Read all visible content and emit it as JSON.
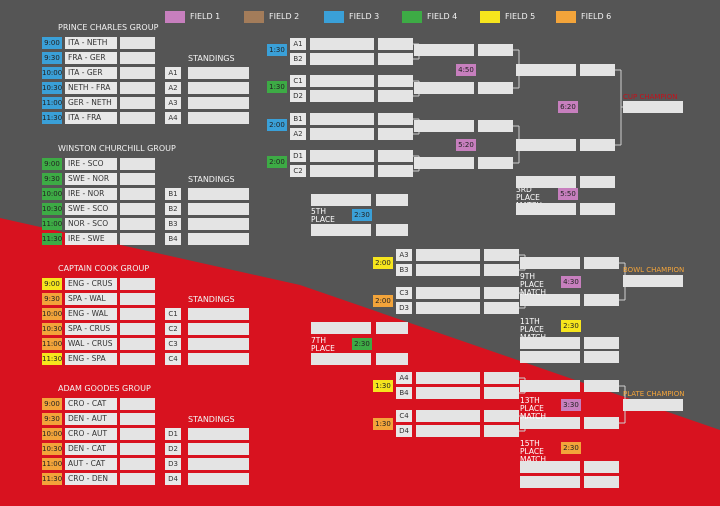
{
  "legend": [
    {
      "label": "FIELD 1",
      "color": "#c77fbe"
    },
    {
      "label": "FIELD 2",
      "color": "#a37c5a"
    },
    {
      "label": "FIELD 3",
      "color": "#3aa0d8"
    },
    {
      "label": "FIELD 4",
      "color": "#3dab45"
    },
    {
      "label": "FIELD 5",
      "color": "#f6e51d"
    },
    {
      "label": "FIELD 6",
      "color": "#f3a43a"
    }
  ],
  "colors": {
    "background": "#555555",
    "red_region": "#d8121f",
    "slot": "#e4e4e4",
    "finals_red": "#c2121c",
    "champion_orange": "#f3a43a"
  },
  "groups": [
    {
      "title": "PRINCE CHARLES GROUP",
      "matches": [
        {
          "time": "9:00",
          "teams": "ITA - NETH",
          "field": 3
        },
        {
          "time": "9:30",
          "teams": "FRA - GER",
          "field": 3
        },
        {
          "time": "10:00",
          "teams": "ITA - GER",
          "field": 3
        },
        {
          "time": "10:30",
          "teams": "NETH - FRA",
          "field": 3
        },
        {
          "time": "11:00",
          "teams": "GER - NETH",
          "field": 3
        },
        {
          "time": "11:30",
          "teams": "ITA - FRA",
          "field": 3
        }
      ],
      "standings_label": "STANDINGS",
      "standings": [
        "A1",
        "A2",
        "A3",
        "A4"
      ]
    },
    {
      "title": "WINSTON CHURCHILL GROUP",
      "matches": [
        {
          "time": "9:00",
          "teams": "IRE - SCO",
          "field": 4
        },
        {
          "time": "9:30",
          "teams": "SWE - NOR",
          "field": 4
        },
        {
          "time": "10:00",
          "teams": "IRE - NOR",
          "field": 4
        },
        {
          "time": "10:30",
          "teams": "SWE - SCO",
          "field": 4
        },
        {
          "time": "11:00",
          "teams": "NOR - SCO",
          "field": 4
        },
        {
          "time": "11:30",
          "teams": "IRE - SWE",
          "field": 4
        }
      ],
      "standings_label": "STANDINGS",
      "standings": [
        "B1",
        "B2",
        "B3",
        "B4"
      ]
    },
    {
      "title": "CAPTAIN COOK GROUP",
      "matches": [
        {
          "time": "9:00",
          "teams": "ENG - CRUS",
          "field": 5
        },
        {
          "time": "9:30",
          "teams": "SPA - WAL",
          "field": 6
        },
        {
          "time": "10:00",
          "teams": "ENG - WAL",
          "field": 6
        },
        {
          "time": "10:30",
          "teams": "SPA - CRUS",
          "field": 6
        },
        {
          "time": "11:00",
          "teams": "WAL - CRUS",
          "field": 6
        },
        {
          "time": "11:30",
          "teams": "ENG - SPA",
          "field": 5
        }
      ],
      "standings_label": "STANDINGS",
      "standings": [
        "C1",
        "C2",
        "C3",
        "C4"
      ]
    },
    {
      "title": "ADAM GOODES GROUP",
      "matches": [
        {
          "time": "9:00",
          "teams": "CRO - CAT",
          "field": 6
        },
        {
          "time": "9:30",
          "teams": "DEN - AUT",
          "field": 6
        },
        {
          "time": "10:00",
          "teams": "CRO - AUT",
          "field": 6
        },
        {
          "time": "10:30",
          "teams": "DEN - CAT",
          "field": 6
        },
        {
          "time": "11:00",
          "teams": "AUT - CAT",
          "field": 6
        },
        {
          "time": "11:30",
          "teams": "CRO - DEN",
          "field": 6
        }
      ],
      "standings_label": "STANDINGS",
      "standings": [
        "D1",
        "D2",
        "D3",
        "D4"
      ]
    }
  ],
  "knockout": {
    "quarterfinals": [
      {
        "time": "1:30",
        "field": 3,
        "seeds": [
          "A1",
          "B2"
        ]
      },
      {
        "time": "1:30",
        "field": 4,
        "seeds": [
          "C1",
          "D2"
        ]
      },
      {
        "time": "2:00",
        "field": 3,
        "seeds": [
          "B1",
          "A2"
        ]
      },
      {
        "time": "2:00",
        "field": 4,
        "seeds": [
          "D1",
          "C2"
        ]
      }
    ],
    "semi_times": [
      {
        "time": "4:50",
        "field": 1
      },
      {
        "time": "5:20",
        "field": 1
      }
    ],
    "final_time": {
      "time": "6:20",
      "field": 1
    },
    "cup_champion_label": "CUP CHAMPION",
    "third_place": {
      "label": "3RD PLACE MATCH",
      "time": "5:50",
      "field": 1
    },
    "fifth_place": {
      "label": "5TH PLACE MATCH",
      "time": "2:30",
      "field": 3
    },
    "bowl_qf": [
      {
        "time": "2:00",
        "field": 5,
        "seeds": [
          "A3",
          "B3"
        ]
      },
      {
        "time": "2:00",
        "field": 6,
        "seeds": [
          "C3",
          "D3"
        ]
      }
    ],
    "ninth_place": {
      "label": "9TH PLACE MATCH",
      "time": "4:30",
      "field": 1
    },
    "bowl_champion_label": "BOWL CHAMPION",
    "eleventh_place": {
      "label": "11TH PLACE MATCH",
      "time": "2:30",
      "field": 5
    },
    "seventh_place": {
      "label": "7TH PLACE MATCH",
      "time": "2:30",
      "field": 4
    },
    "plate_qf": [
      {
        "time": "1:30",
        "field": 5,
        "seeds": [
          "A4",
          "B4"
        ]
      },
      {
        "time": "1:30",
        "field": 6,
        "seeds": [
          "C4",
          "D4"
        ]
      }
    ],
    "thirteenth_place": {
      "label": "13TH PLACE MATCH",
      "time": "3:30",
      "field": 1
    },
    "plate_champion_label": "PLATE CHAMPION",
    "fifteenth_place": {
      "label": "15TH PLACE MATCH",
      "time": "2:30",
      "field": 6
    }
  }
}
